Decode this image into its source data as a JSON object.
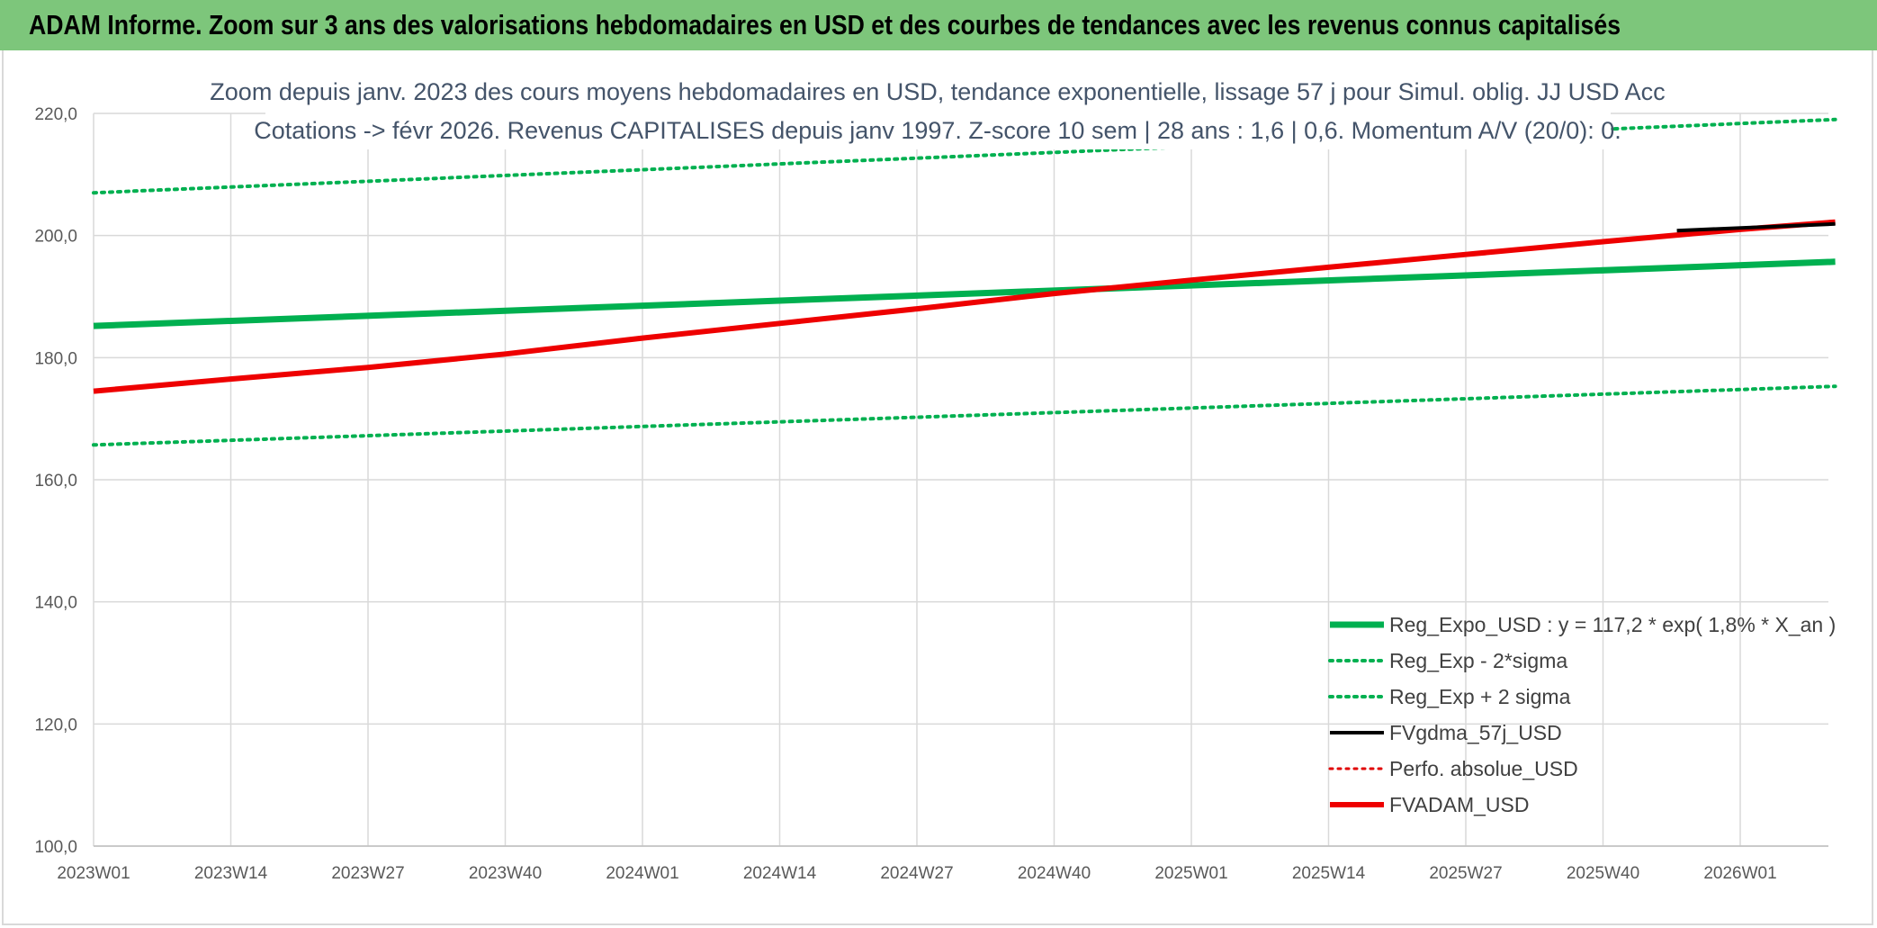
{
  "banner": {
    "title": "ADAM Informe. Zoom sur 3 ans des valorisations hebdomadaires en USD et des courbes de tendances avec les revenus connus capitalisés"
  },
  "chart_data": {
    "type": "line",
    "title_line1": "Zoom depuis janv. 2023 des cours moyens hebdomadaires en USD, tendance exponentielle, lissage 57 j pour Simul. oblig. JJ USD Acc",
    "title_line2": "Cotations -> févr 2026. Revenus CAPITALISES depuis janv 1997. Z-score 10 sem | 28 ans : 1,6 | 0,6. Momentum A/V (20/0): 0.",
    "x_categories": [
      "2023W01",
      "2023W14",
      "2023W27",
      "2023W40",
      "2024W01",
      "2024W14",
      "2024W27",
      "2024W40",
      "2025W01",
      "2025W14",
      "2025W27",
      "2025W40",
      "2026W01"
    ],
    "x_range_weeks": [
      0,
      165
    ],
    "ylim": [
      100,
      220
    ],
    "y_ticks": [
      "100,0",
      "120,0",
      "140,0",
      "160,0",
      "180,0",
      "200,0",
      "220,0"
    ],
    "grid": true,
    "legend_position": "bottom-right",
    "series": [
      {
        "name": "Reg_Expo_USD : y = 117,2 * exp( 1,8% *  X_an )",
        "style": "solid",
        "color": "#00b050",
        "width": 7,
        "x_weeks": [
          0,
          165
        ],
        "values": [
          185.2,
          195.7
        ]
      },
      {
        "name": "Reg_Exp - 2*sigma",
        "style": "dotted",
        "color": "#00b050",
        "width": 4,
        "x_weeks": [
          0,
          165
        ],
        "values": [
          165.7,
          175.3
        ]
      },
      {
        "name": "Reg_Exp + 2 sigma",
        "style": "dotted",
        "color": "#00b050",
        "width": 4,
        "x_weeks": [
          0,
          165
        ],
        "values": [
          207.0,
          219.0
        ]
      },
      {
        "name": "FVgdma_57j_USD",
        "style": "solid",
        "color": "#000000",
        "width": 4,
        "x_weeks": [
          150,
          165
        ],
        "values": [
          200.8,
          201.9
        ]
      },
      {
        "name": "Perfo. absolue_USD",
        "style": "dotted",
        "color": "#e00000",
        "width": 3,
        "x_weeks": [],
        "values": []
      },
      {
        "name": "FVADAM_USD",
        "style": "solid",
        "color": "#ee0000",
        "width": 6,
        "x_weeks": [
          0,
          13,
          26,
          39,
          52,
          65,
          78,
          91,
          104,
          117,
          130,
          143,
          156,
          165
        ],
        "values": [
          174.5,
          176.5,
          178.4,
          180.6,
          183.2,
          185.6,
          188.0,
          190.5,
          192.7,
          194.8,
          196.9,
          199.0,
          201.0,
          202.2
        ]
      }
    ]
  }
}
